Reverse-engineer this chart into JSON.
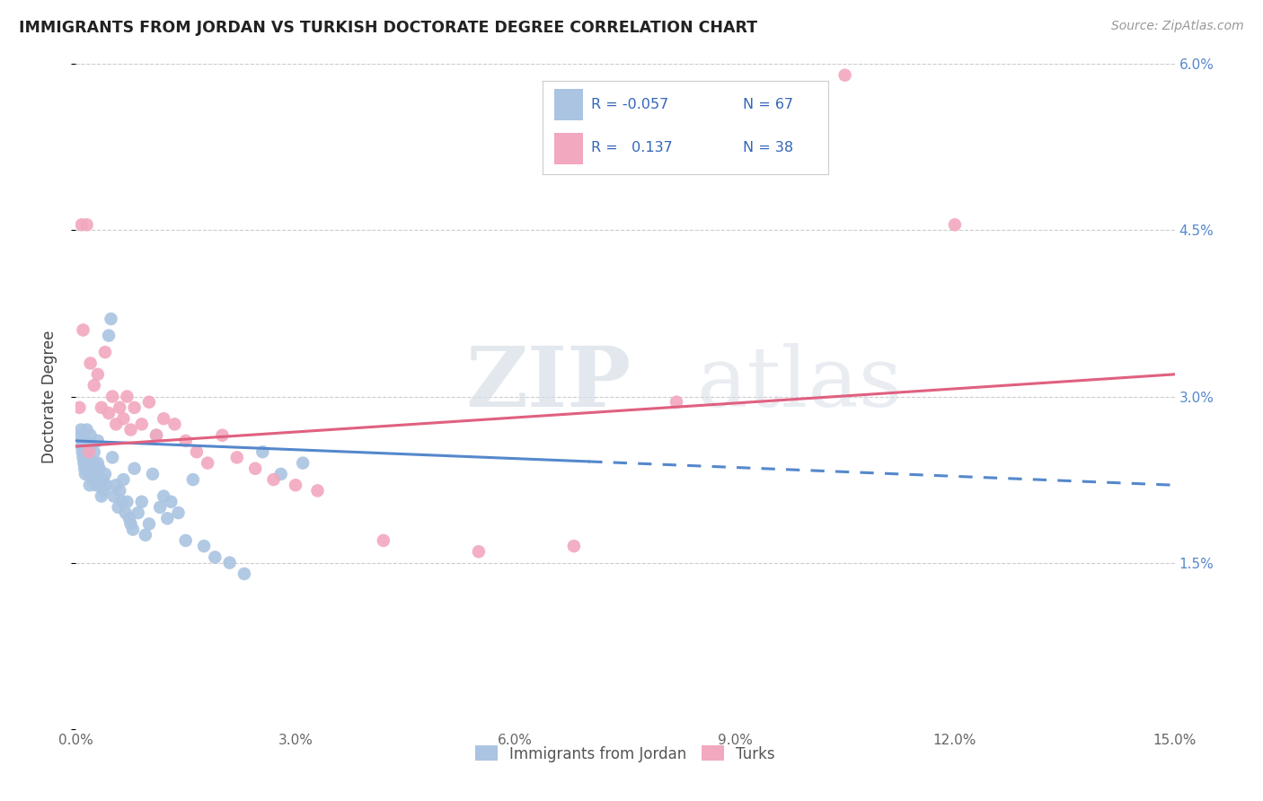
{
  "title": "IMMIGRANTS FROM JORDAN VS TURKISH DOCTORATE DEGREE CORRELATION CHART",
  "source": "Source: ZipAtlas.com",
  "ylabel_label": "Doctorate Degree",
  "color_jordan": "#aac4e2",
  "color_turks": "#f2a8be",
  "color_jordan_line": "#5588cc",
  "color_turks_line": "#e06080",
  "watermark_zip": "ZIP",
  "watermark_atlas": "atlas",
  "jordan_x": [
    0.05,
    0.07,
    0.08,
    0.09,
    0.1,
    0.1,
    0.11,
    0.12,
    0.13,
    0.14,
    0.15,
    0.16,
    0.17,
    0.18,
    0.19,
    0.2,
    0.2,
    0.22,
    0.23,
    0.25,
    0.25,
    0.27,
    0.28,
    0.3,
    0.3,
    0.32,
    0.33,
    0.35,
    0.37,
    0.38,
    0.4,
    0.42,
    0.45,
    0.48,
    0.5,
    0.52,
    0.55,
    0.58,
    0.6,
    0.63,
    0.65,
    0.68,
    0.7,
    0.73,
    0.75,
    0.78,
    0.8,
    0.85,
    0.9,
    0.95,
    1.0,
    1.05,
    1.1,
    1.15,
    1.2,
    1.25,
    1.3,
    1.4,
    1.5,
    1.6,
    1.75,
    1.9,
    2.1,
    2.3,
    2.55,
    2.8,
    3.1
  ],
  "jordan_y": [
    2.65,
    2.7,
    2.55,
    2.5,
    2.6,
    2.45,
    2.4,
    2.35,
    2.3,
    2.6,
    2.7,
    2.55,
    2.45,
    2.3,
    2.2,
    2.55,
    2.65,
    2.35,
    2.25,
    2.4,
    2.5,
    2.3,
    2.2,
    2.4,
    2.6,
    2.35,
    2.2,
    2.1,
    2.25,
    2.15,
    2.3,
    2.2,
    3.55,
    3.7,
    2.45,
    2.1,
    2.2,
    2.0,
    2.15,
    2.05,
    2.25,
    1.95,
    2.05,
    1.9,
    1.85,
    1.8,
    2.35,
    1.95,
    2.05,
    1.75,
    1.85,
    2.3,
    2.65,
    2.0,
    2.1,
    1.9,
    2.05,
    1.95,
    1.7,
    2.25,
    1.65,
    1.55,
    1.5,
    1.4,
    2.5,
    2.3,
    2.4
  ],
  "turks_x": [
    0.05,
    0.1,
    0.15,
    0.2,
    0.25,
    0.3,
    0.35,
    0.4,
    0.45,
    0.5,
    0.55,
    0.6,
    0.65,
    0.7,
    0.75,
    0.8,
    0.9,
    1.0,
    1.1,
    1.2,
    1.35,
    1.5,
    1.65,
    1.8,
    2.0,
    2.2,
    2.45,
    2.7,
    3.0,
    3.3,
    4.2,
    5.5,
    6.8,
    8.2,
    10.5,
    12.0,
    0.08,
    0.18
  ],
  "turks_y": [
    2.9,
    3.6,
    4.55,
    3.3,
    3.1,
    3.2,
    2.9,
    3.4,
    2.85,
    3.0,
    2.75,
    2.9,
    2.8,
    3.0,
    2.7,
    2.9,
    2.75,
    2.95,
    2.65,
    2.8,
    2.75,
    2.6,
    2.5,
    2.4,
    2.65,
    2.45,
    2.35,
    2.25,
    2.2,
    2.15,
    1.7,
    1.6,
    1.65,
    2.95,
    5.9,
    4.55,
    4.55,
    2.5
  ],
  "jordan_line_x0": 0.0,
  "jordan_line_x1": 15.0,
  "jordan_line_y0": 2.6,
  "jordan_line_y1": 2.2,
  "jordan_solid_end": 7.0,
  "turks_line_x0": 0.0,
  "turks_line_x1": 15.0,
  "turks_line_y0": 2.55,
  "turks_line_y1": 3.2,
  "xlim": [
    0,
    15.0
  ],
  "ylim": [
    0,
    6.0
  ],
  "xtick_vals": [
    0,
    3.0,
    6.0,
    9.0,
    12.0,
    15.0
  ],
  "xtick_labels": [
    "0.0%",
    "3.0%",
    "6.0%",
    "9.0%",
    "12.0%",
    "15.0%"
  ],
  "ytick_vals": [
    0,
    1.5,
    3.0,
    4.5,
    6.0
  ],
  "ytick_labels": [
    "",
    "1.5%",
    "3.0%",
    "4.5%",
    "6.0%"
  ]
}
